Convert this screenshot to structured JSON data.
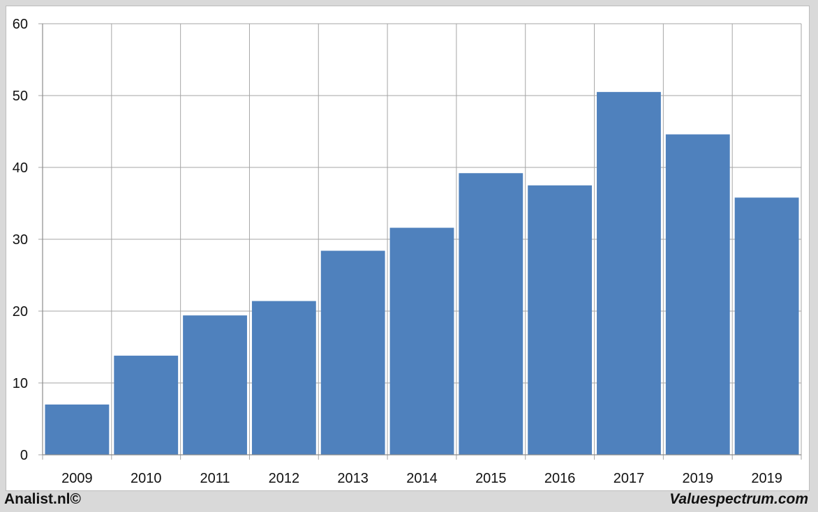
{
  "chart_data": {
    "type": "bar",
    "title": "",
    "xlabel": "",
    "ylabel": "",
    "categories": [
      "2009",
      "2010",
      "2011",
      "2012",
      "2013",
      "2014",
      "2015",
      "2016",
      "2017",
      "2019",
      "2019"
    ],
    "values": [
      7.0,
      13.8,
      19.4,
      21.4,
      28.4,
      31.6,
      39.2,
      37.5,
      50.5,
      44.6,
      35.8
    ],
    "ylim": [
      0,
      60
    ],
    "yticks": [
      0,
      10,
      20,
      30,
      40,
      50,
      60
    ],
    "grid": true,
    "bar_color": "#4f81bd",
    "grid_color": "#a6a6a6"
  },
  "footer": {
    "left": "Analist.nl©",
    "right": "Valuespectrum.com"
  }
}
